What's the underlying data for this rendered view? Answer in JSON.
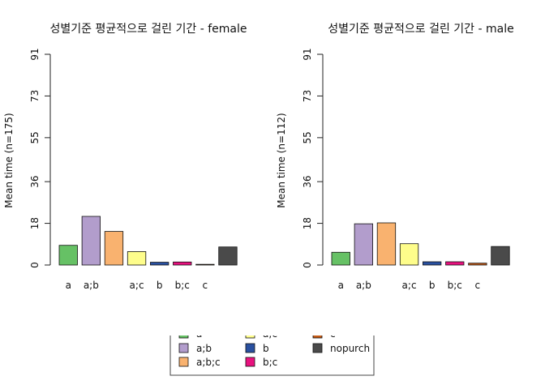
{
  "chart_data": {
    "type": "bar",
    "categories": [
      "a",
      "a;b",
      "a;b;c",
      "a;c",
      "b",
      "b;c",
      "c",
      "nopurch"
    ],
    "tick_labels": [
      "a",
      "a;b",
      "a;c",
      "b",
      "b;c",
      "c"
    ],
    "colors": [
      "#66c165",
      "#b29dcc",
      "#f9b26f",
      "#fefd8b",
      "#2950a0",
      "#e8117f",
      "#c45a15",
      "#4a4a4a"
    ],
    "ylim": [
      0,
      91
    ],
    "yticks": [
      0,
      18,
      36,
      55,
      73,
      91
    ],
    "legend": {
      "placement": "bottom-center",
      "entries": [
        "a",
        "a;b",
        "a;b;c",
        "a;c",
        "b",
        "b;c",
        "c",
        "nopurch"
      ]
    },
    "panels": [
      {
        "title": "성별기준 평균적으로 걸린 기간 - female",
        "ylabel": "Mean time (n=175)",
        "values": [
          8.5,
          21,
          14.5,
          5.8,
          1.2,
          1.3,
          0.3,
          7.8
        ]
      },
      {
        "title": "성별기준 평균적으로 걸린 기간 - male",
        "ylabel": "Mean time (n=112)",
        "values": [
          5.5,
          17.8,
          18.2,
          9.2,
          1.4,
          1.4,
          0.8,
          8.0
        ]
      }
    ]
  }
}
